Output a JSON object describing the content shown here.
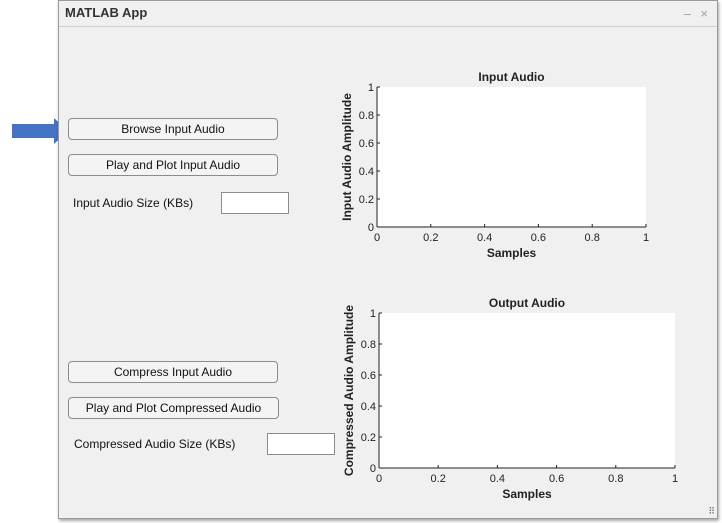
{
  "window": {
    "title": "MATLAB App",
    "minimize": "–",
    "close": "×"
  },
  "input_panel": {
    "browse_label": "Browse Input Audio",
    "play_label": "Play and Plot Input Audio",
    "size_label": "Input Audio Size (KBs)",
    "size_value": ""
  },
  "output_panel": {
    "compress_label": "Compress Input Audio",
    "play_label": "Play and Plot Compressed Audio",
    "size_label": "Compressed Audio Size (KBs)",
    "size_value": ""
  },
  "annotation": {
    "arrow_color": "#4472c4"
  },
  "chart_data": [
    {
      "type": "line",
      "title": "Input Audio",
      "xlabel": "Samples",
      "ylabel": "Input Audio Amplitude",
      "xlim": [
        0,
        1
      ],
      "ylim": [
        0,
        1
      ],
      "xticks": [
        "0",
        "0.2",
        "0.4",
        "0.6",
        "0.8",
        "1"
      ],
      "yticks": [
        "0",
        "0.2",
        "0.4",
        "0.6",
        "0.8",
        "1"
      ],
      "series": []
    },
    {
      "type": "line",
      "title": "Output Audio",
      "xlabel": "Samples",
      "ylabel": "Compressed Audio Amplitude",
      "xlim": [
        0,
        1
      ],
      "ylim": [
        0,
        1
      ],
      "xticks": [
        "0",
        "0.2",
        "0.4",
        "0.6",
        "0.8",
        "1"
      ],
      "yticks": [
        "0",
        "0.2",
        "0.4",
        "0.6",
        "0.8",
        "1"
      ],
      "series": []
    }
  ]
}
